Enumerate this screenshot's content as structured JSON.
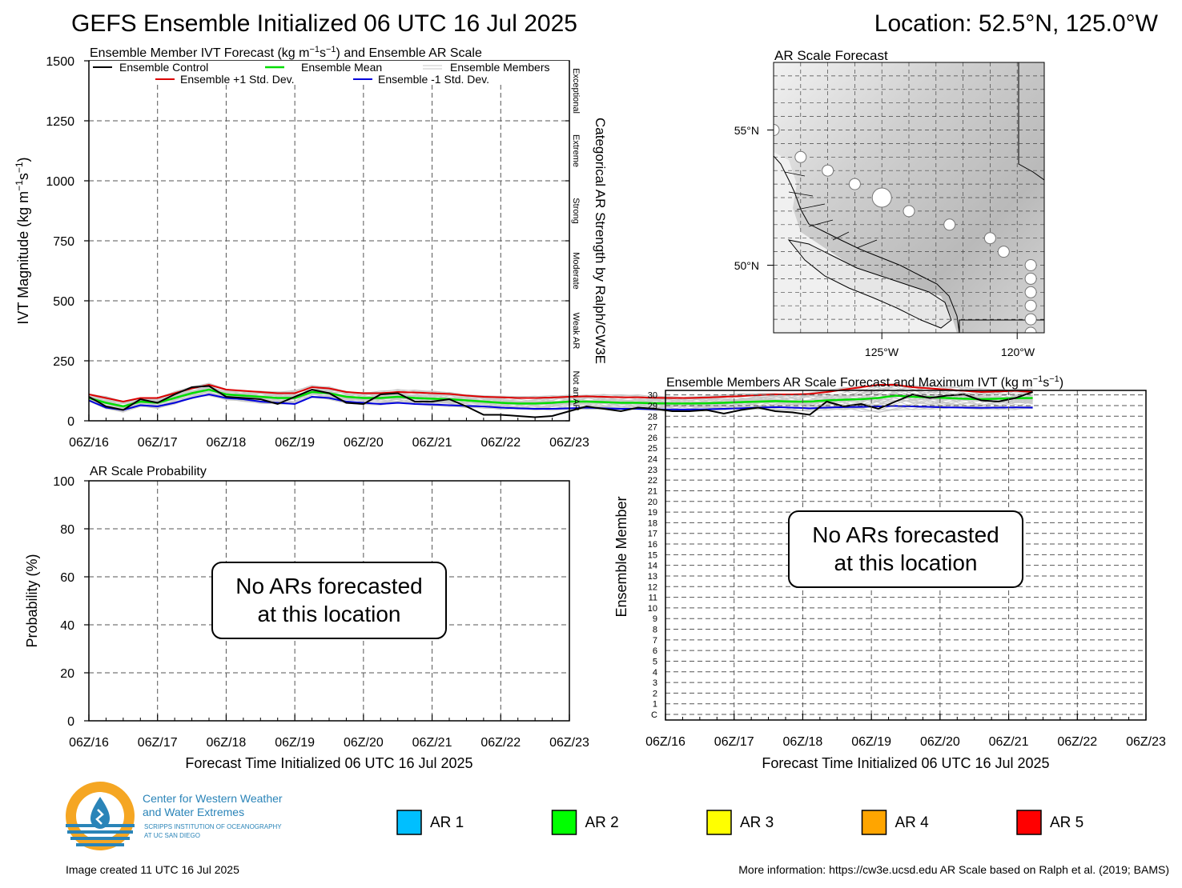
{
  "header": {
    "title": "GEFS Ensemble Initialized 06 UTC 16 Jul 2025",
    "location": "Location: 52.5°N, 125.0°W"
  },
  "time_ticks": [
    "06Z/16",
    "06Z/17",
    "06Z/18",
    "06Z/19",
    "06Z/20",
    "06Z/21",
    "06Z/22",
    "06Z/23"
  ],
  "ivt_panel": {
    "title_part1": "Ensemble Member IVT Forecast (kg m",
    "title_sup1": "−1",
    "title_part2": "s",
    "title_sup2": "−1",
    "title_part3": ") and Ensemble AR Scale",
    "ylabel_part1": "IVT Magnitude (kg m",
    "ylabel_sup1": "−1",
    "ylabel_part2": "s",
    "ylabel_sup2": "−1",
    "ylabel_part3": ")",
    "right_label": "Categorical AR Strength by Ralph/CW3E",
    "categories": [
      "Exceptional",
      "Extreme",
      "Strong",
      "Moderate",
      "Weak AR",
      "Not an AR"
    ],
    "category_bounds": [
      1500,
      1250,
      1000,
      750,
      500,
      250,
      0
    ],
    "legend": {
      "control": "Ensemble Control",
      "mean": "Ensemble Mean",
      "members": "Ensemble Members",
      "plus_sd": "Ensemble +1 Std. Dev.",
      "minus_sd": "Ensemble -1 Std. Dev."
    }
  },
  "prob_panel": {
    "title": "AR Scale Probability",
    "ylabel": "Probability (%)",
    "xlabel": "Forecast Time Initialized 06 UTC 16 Jul 2025",
    "message_line1": "No ARs forecasted",
    "message_line2": "at this location"
  },
  "map_panel": {
    "title": "AR Scale Forecast",
    "lat_labels": [
      "55°N",
      "50°N"
    ],
    "lon_labels": [
      "125°W",
      "120°W"
    ],
    "lon_range": [
      -129,
      -119
    ],
    "lat_range": [
      47.5,
      57.5
    ],
    "track": [
      {
        "lon": -129.0,
        "lat": 55.0,
        "size": "small"
      },
      {
        "lon": -128.0,
        "lat": 54.0,
        "size": "small"
      },
      {
        "lon": -127.0,
        "lat": 53.5,
        "size": "small"
      },
      {
        "lon": -126.0,
        "lat": 53.0,
        "size": "small"
      },
      {
        "lon": -125.0,
        "lat": 52.5,
        "size": "large"
      },
      {
        "lon": -124.0,
        "lat": 52.0,
        "size": "small"
      },
      {
        "lon": -122.5,
        "lat": 51.5,
        "size": "small"
      },
      {
        "lon": -121.0,
        "lat": 51.0,
        "size": "small"
      },
      {
        "lon": -120.5,
        "lat": 50.5,
        "size": "small"
      },
      {
        "lon": -119.5,
        "lat": 50.0,
        "size": "small"
      },
      {
        "lon": -119.5,
        "lat": 49.5,
        "size": "small"
      },
      {
        "lon": -119.5,
        "lat": 49.0,
        "size": "small"
      },
      {
        "lon": -119.5,
        "lat": 48.5,
        "size": "small"
      },
      {
        "lon": -119.5,
        "lat": 48.0,
        "size": "small"
      },
      {
        "lon": -119.5,
        "lat": 47.5,
        "size": "small"
      }
    ]
  },
  "members_panel": {
    "title_part1": "Ensemble Members AR Scale Forecast and Maximum IVT (kg m",
    "title_sup1": "−1",
    "title_part2": "s",
    "title_sup2": "−1",
    "title_part3": ")",
    "ylabel": "Ensemble Member",
    "xlabel": "Forecast Time Initialized 06 UTC 16 Jul 2025",
    "members": [
      "C",
      "1",
      "2",
      "3",
      "4",
      "5",
      "6",
      "7",
      "8",
      "9",
      "10",
      "11",
      "12",
      "13",
      "14",
      "15",
      "16",
      "17",
      "18",
      "19",
      "20",
      "21",
      "22",
      "23",
      "24",
      "25",
      "26",
      "27",
      "28",
      "29",
      "30"
    ],
    "message_line1": "No ARs forecasted",
    "message_line2": "at this location"
  },
  "ar_legend": [
    {
      "label": "AR 1",
      "color": "#00bfff"
    },
    {
      "label": "AR 2",
      "color": "#00ff00"
    },
    {
      "label": "AR 3",
      "color": "#ffff00"
    },
    {
      "label": "AR 4",
      "color": "#ffa500"
    },
    {
      "label": "AR 5",
      "color": "#ff0000"
    }
  ],
  "logo": {
    "line1": "Center for Western Weather",
    "line2": "and Water Extremes",
    "line3": "SCRIPPS INSTITUTION OF OCEANOGRAPHY",
    "line4": "AT UC SAN DIEGO",
    "accent": "#f5a623",
    "primary": "#2a84b8"
  },
  "footer": {
    "created": "Image created 11 UTC 16 Jul 2025",
    "info": "More information: https://cw3e.ucsd.edu AR Scale based on Ralph et al. (2019; BAMS)"
  },
  "chart_data": [
    {
      "type": "line",
      "title": "Ensemble Member IVT Forecast (kg m−1s−1) and Ensemble AR Scale",
      "ylabel": "IVT Magnitude (kg m−1s−1)",
      "ylim": [
        0,
        1500
      ],
      "yticks": [
        0,
        250,
        500,
        750,
        1000,
        1250,
        1500
      ],
      "x_hours_range": [
        0,
        168
      ],
      "x_step_hours": 6,
      "grid": true,
      "legend_position": "top",
      "series": [
        {
          "name": "Ensemble Control",
          "color": "#000000",
          "values": [
            100,
            60,
            45,
            90,
            75,
            110,
            140,
            145,
            100,
            95,
            90,
            70,
            100,
            130,
            115,
            75,
            70,
            110,
            115,
            80,
            80,
            90,
            60,
            25,
            25,
            20,
            15,
            20,
            40,
            60,
            50,
            40,
            55,
            50,
            40,
            40,
            45,
            30,
            45,
            55,
            40,
            35,
            25,
            80,
            60,
            70,
            50,
            80,
            110,
            95,
            105,
            110,
            85,
            80,
            95,
            120
          ]
        },
        {
          "name": "Ensemble Mean",
          "color": "#00dd00",
          "values": [
            95,
            75,
            60,
            80,
            75,
            95,
            115,
            130,
            110,
            105,
            100,
            95,
            95,
            120,
            115,
            100,
            95,
            95,
            100,
            95,
            92,
            90,
            85,
            80,
            75,
            72,
            72,
            75,
            80,
            80,
            78,
            75,
            75,
            73,
            72,
            72,
            73,
            75,
            78,
            80,
            82,
            80,
            80,
            85,
            88,
            90,
            95,
            105,
            100,
            98,
            95,
            92,
            90,
            92,
            94,
            95
          ]
        },
        {
          "name": "Ensemble +1 Std. Dev.",
          "color": "#dd0000",
          "values": [
            110,
            95,
            80,
            95,
            95,
            115,
            135,
            150,
            130,
            125,
            120,
            115,
            115,
            140,
            135,
            120,
            115,
            115,
            120,
            118,
            115,
            112,
            105,
            100,
            98,
            95,
            95,
            97,
            100,
            102,
            100,
            98,
            98,
            96,
            95,
            95,
            97,
            100,
            103,
            107,
            110,
            110,
            112,
            120,
            130,
            140,
            150,
            150,
            140,
            135,
            130,
            125,
            120,
            122,
            125,
            120
          ]
        },
        {
          "name": "Ensemble -1 Std. Dev.",
          "color": "#0000dd",
          "values": [
            85,
            55,
            45,
            65,
            60,
            75,
            95,
            110,
            95,
            90,
            80,
            75,
            70,
            100,
            95,
            80,
            75,
            70,
            75,
            70,
            68,
            65,
            62,
            60,
            55,
            52,
            50,
            50,
            52,
            55,
            52,
            50,
            50,
            48,
            47,
            47,
            48,
            50,
            52,
            55,
            57,
            55,
            52,
            55,
            57,
            58,
            60,
            62,
            60,
            58,
            56,
            55,
            54,
            55,
            56,
            55
          ]
        }
      ]
    },
    {
      "type": "line",
      "title": "AR Scale Probability",
      "ylabel": "Probability (%)",
      "xlabel": "Forecast Time Initialized 06 UTC 16 Jul 2025",
      "ylim": [
        0,
        100
      ],
      "yticks": [
        0,
        20,
        40,
        60,
        80,
        100
      ],
      "grid": true,
      "series": []
    },
    {
      "type": "heatmap",
      "title": "Ensemble Members AR Scale Forecast and Maximum IVT (kg m−1s−1)",
      "ylabel": "Ensemble Member",
      "xlabel": "Forecast Time Initialized 06 UTC 16 Jul 2025",
      "grid": true,
      "series": []
    }
  ]
}
